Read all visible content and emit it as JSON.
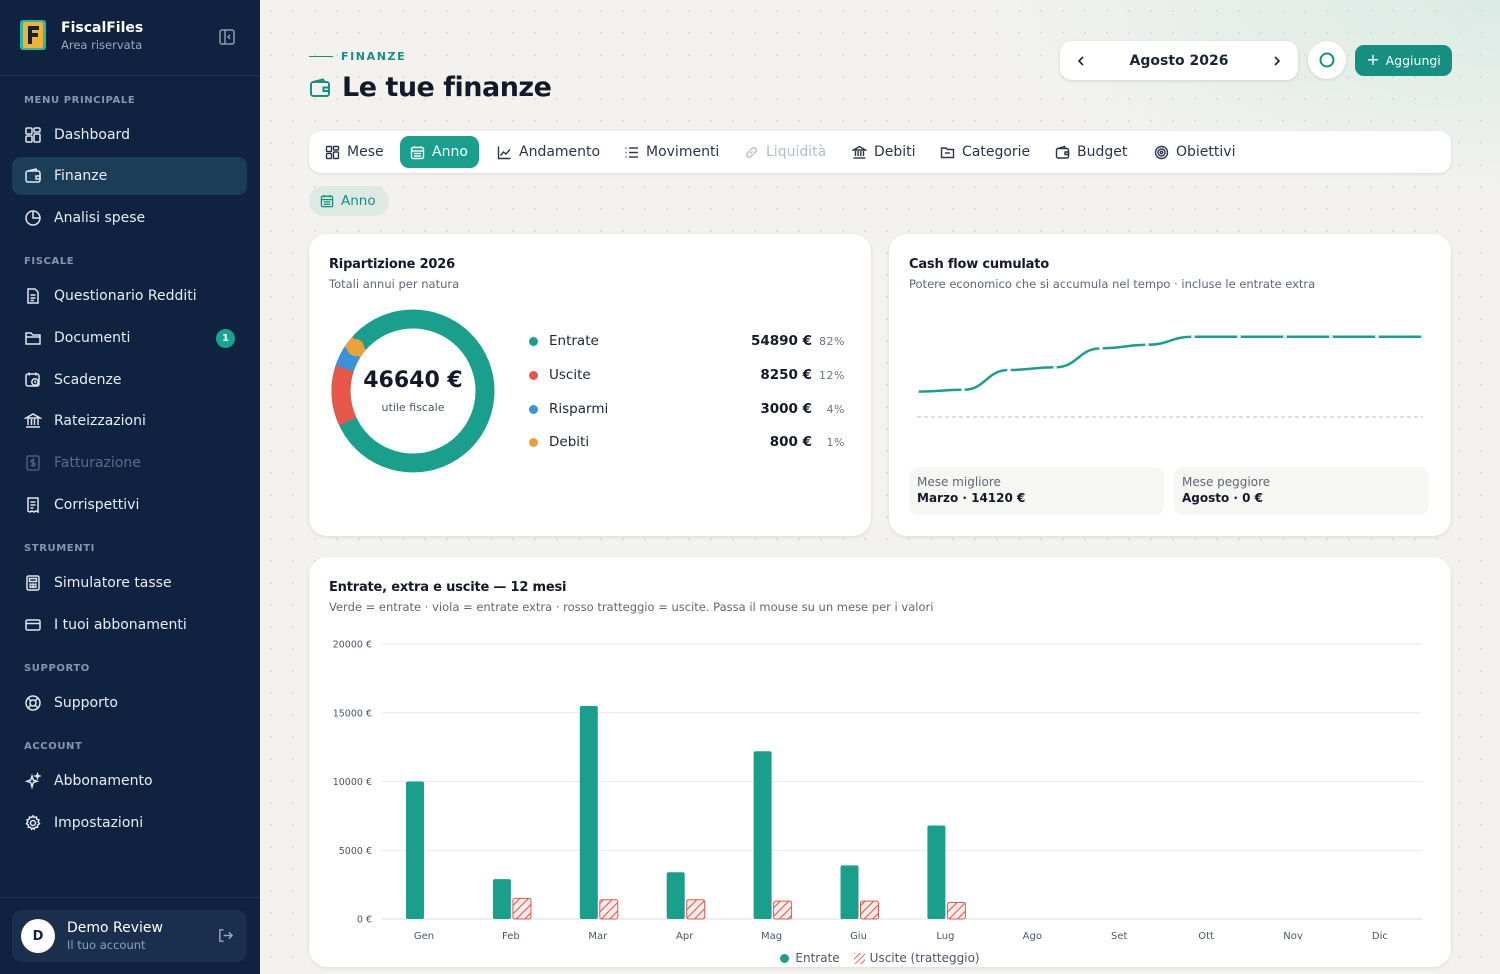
{
  "app": {
    "name": "FiscalFiles",
    "subtitle": "Area riservata"
  },
  "sidebar": {
    "sections": {
      "main": "MENU PRINCIPALE",
      "fiscal": "FISCALE",
      "tools": "STRUMENTI",
      "support": "SUPPORTO",
      "account": "ACCOUNT"
    },
    "items": {
      "dashboard": "Dashboard",
      "finanze": "Finanze",
      "analisi": "Analisi spese",
      "questionario": "Questionario Redditi",
      "documenti": "Documenti",
      "documenti_badge": "1",
      "scadenze": "Scadenze",
      "rateizzazioni": "Rateizzazioni",
      "fatturazione": "Fatturazione",
      "corrispettivi": "Corrispettivi",
      "simulatore": "Simulatore tasse",
      "abbonamenti": "I tuoi abbonamenti",
      "supporto": "Supporto",
      "abbonamento": "Abbonamento",
      "impostazioni": "Impostazioni"
    },
    "user": {
      "initial": "D",
      "name": "Demo Review",
      "subtitle": "Il tuo account"
    }
  },
  "header": {
    "eyebrow": "FINANZE",
    "title": "Le tue finanze",
    "month": "Agosto 2026",
    "add_label": "Aggiungi"
  },
  "tabs": {
    "mese": "Mese",
    "anno": "Anno",
    "andamento": "Andamento",
    "movimenti": "Movimenti",
    "liquidita": "Liquidità",
    "debiti": "Debiti",
    "categorie": "Categorie",
    "budget": "Budget",
    "obiettivi": "Obiettivi"
  },
  "chip_label": "Anno",
  "breakdown": {
    "title": "Ripartizione 2026",
    "subtitle": "Totali annui per natura",
    "center_value": "46640 €",
    "center_label": "utile fiscale",
    "items": [
      {
        "name": "Entrate",
        "value": "54890 €",
        "pct": "82%",
        "share": 0.82,
        "color": "#1a9f8c"
      },
      {
        "name": "Uscite",
        "value": "8250 €",
        "pct": "12%",
        "share": 0.12,
        "color": "#e5574b"
      },
      {
        "name": "Risparmi",
        "value": "3000 €",
        "pct": "4%",
        "share": 0.04,
        "color": "#3a93d8"
      },
      {
        "name": "Debiti",
        "value": "800 €",
        "pct": "1%",
        "share": 0.01,
        "color": "#e9a23b"
      }
    ]
  },
  "cashflow": {
    "title": "Cash flow cumulato",
    "subtitle": "Potere economico che si accumula nel tempo · incluse le entrate extra",
    "best_label": "Mese migliore",
    "best_value": "Marzo · 14120 €",
    "worst_label": "Mese peggiore",
    "worst_value": "Agosto · 0 €",
    "line_color": "#1a9f8c",
    "series_shape": [
      0.36,
      0.38,
      0.6,
      0.63,
      0.84,
      0.88,
      0.97,
      0.97,
      0.97,
      0.97,
      0.97,
      0.97
    ]
  },
  "chart_data": {
    "type": "bar",
    "title": "Entrate, extra e uscite — 12 mesi",
    "subtitle": "Verde = entrate · viola = entrate extra · rosso tratteggio = uscite. Passa il mouse su un mese per i valori",
    "categories": [
      "Gen",
      "Feb",
      "Mar",
      "Apr",
      "Mag",
      "Giu",
      "Lug",
      "Ago",
      "Set",
      "Ott",
      "Nov",
      "Dic"
    ],
    "yticks": [
      "20000 €",
      "15000 €",
      "10000 €",
      "5000 €",
      "0 €"
    ],
    "ylim": [
      0,
      20000
    ],
    "series": [
      {
        "name": "Entrate",
        "color": "#1a9f8c",
        "values": [
          10000,
          2900,
          15500,
          3400,
          12200,
          3900,
          6800,
          0,
          0,
          0,
          0,
          0
        ]
      },
      {
        "name": "Uscite (tratteggio)",
        "color": "#e5574b",
        "values": [
          0,
          1500,
          1400,
          1400,
          1300,
          1300,
          1200,
          0,
          0,
          0,
          0,
          0
        ]
      }
    ],
    "legend_position": "bottom"
  }
}
